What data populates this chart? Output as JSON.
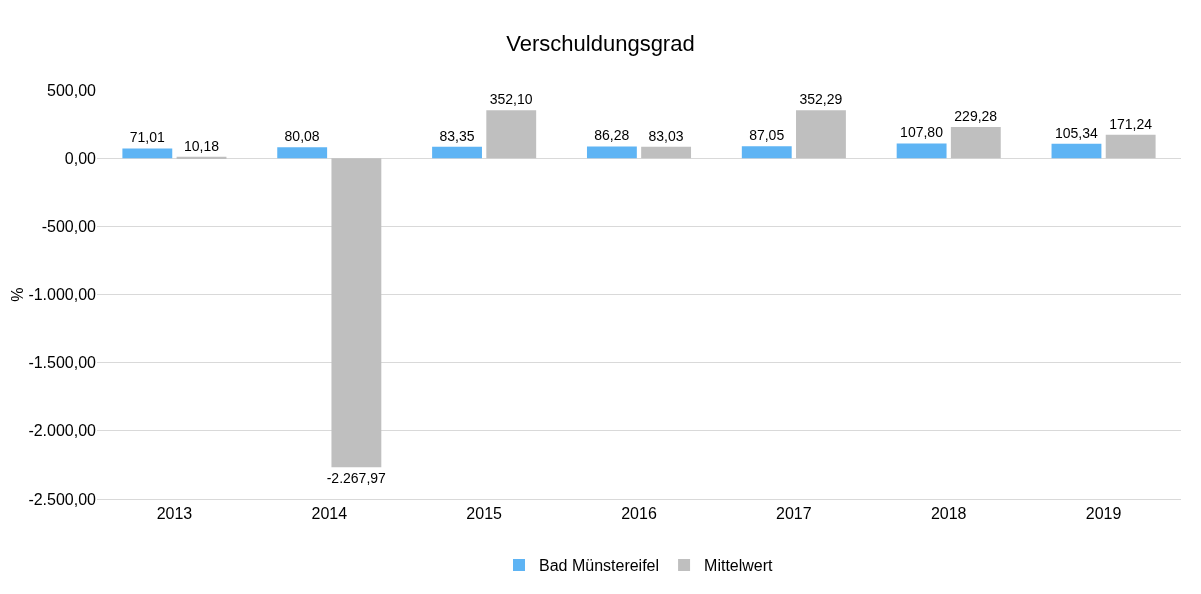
{
  "chart_data": {
    "type": "bar",
    "title": "Verschuldungsgrad",
    "ylabel": "%",
    "categories": [
      "2013",
      "2014",
      "2015",
      "2016",
      "2017",
      "2018",
      "2019"
    ],
    "series": [
      {
        "name": "Bad Münstereifel",
        "color": "#5eb4f4",
        "values": [
          71.01,
          80.08,
          83.35,
          86.28,
          87.05,
          107.8,
          105.34
        ],
        "value_labels": [
          "71,01",
          "80,08",
          "83,35",
          "86,28",
          "87,05",
          "107,80",
          "105,34"
        ]
      },
      {
        "name": "Mittelwert",
        "color": "#bfbfbf",
        "values": [
          10.18,
          -2267.97,
          352.1,
          83.03,
          352.29,
          229.28,
          171.24
        ],
        "value_labels": [
          "10,18",
          "-2.267,97",
          "352,10",
          "83,03",
          "352,29",
          "229,28",
          "171,24"
        ]
      }
    ],
    "ylim": [
      -2500,
      500
    ],
    "yticks": [
      {
        "value": 500,
        "label": "500,00"
      },
      {
        "value": 0,
        "label": "0,00"
      },
      {
        "value": -500,
        "label": "-500,00"
      },
      {
        "value": -1000,
        "label": "-1.000,00"
      },
      {
        "value": -1500,
        "label": "-1.500,00"
      },
      {
        "value": -2000,
        "label": "-2.000,00"
      },
      {
        "value": -2500,
        "label": "-2.500,00"
      }
    ],
    "grid": "y",
    "legend": "bottom"
  }
}
